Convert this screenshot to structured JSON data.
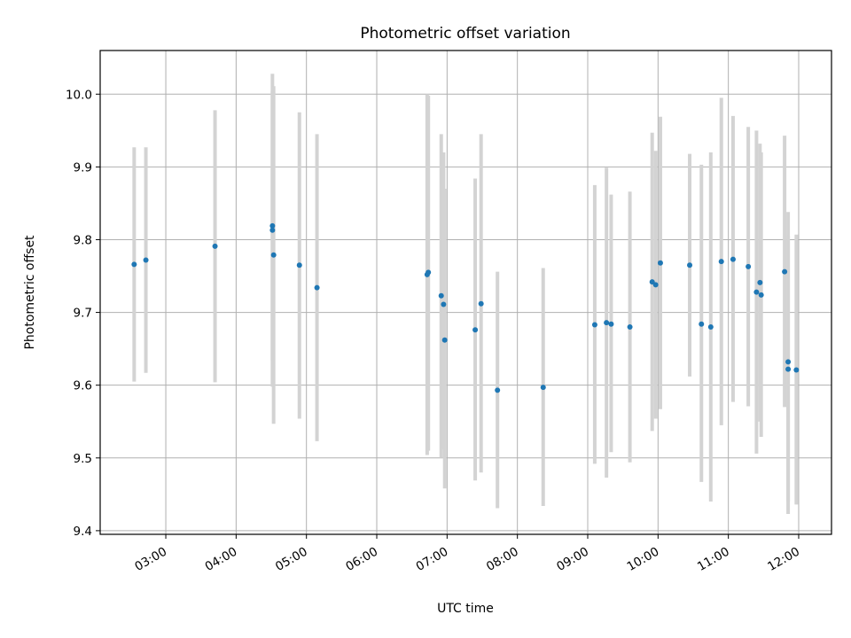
{
  "chart_data": {
    "type": "scatter",
    "title": "Photometric offset variation",
    "xlabel": "UTC time",
    "ylabel": "Photometric offset",
    "x_unit": "hours UTC",
    "xlim": [
      "02:04",
      "12:28"
    ],
    "ylim": [
      9.395,
      10.06
    ],
    "grid": true,
    "x_ticks": [
      "03:00",
      "04:00",
      "05:00",
      "06:00",
      "07:00",
      "08:00",
      "09:00",
      "10:00",
      "11:00",
      "12:00"
    ],
    "y_ticks": [
      "9.4",
      "9.5",
      "9.6",
      "9.7",
      "9.8",
      "9.9",
      "10.0"
    ],
    "error_color": "#d3d3d3",
    "point_color": "#1f77b4",
    "points": [
      {
        "x": "02:33",
        "y": 9.766,
        "ymin": 9.605,
        "ymax": 9.927
      },
      {
        "x": "02:43",
        "y": 9.772,
        "ymin": 9.617,
        "ymax": 9.927
      },
      {
        "x": "03:42",
        "y": 9.791,
        "ymin": 9.604,
        "ymax": 9.978
      },
      {
        "x": "04:31",
        "y": 9.813,
        "ymin": 9.598,
        "ymax": 10.028
      },
      {
        "x": "04:31",
        "y": 9.819,
        "ymin": 9.634,
        "ymax": 10.004
      },
      {
        "x": "04:32",
        "y": 9.779,
        "ymin": 9.547,
        "ymax": 10.011
      },
      {
        "x": "04:54",
        "y": 9.765,
        "ymin": 9.554,
        "ymax": 9.975
      },
      {
        "x": "05:09",
        "y": 9.734,
        "ymin": 9.523,
        "ymax": 9.945
      },
      {
        "x": "06:43",
        "y": 9.752,
        "ymin": 9.504,
        "ymax": 10.0
      },
      {
        "x": "06:44",
        "y": 9.755,
        "ymin": 9.51,
        "ymax": 9.998
      },
      {
        "x": "06:55",
        "y": 9.723,
        "ymin": 9.5,
        "ymax": 9.945
      },
      {
        "x": "06:57",
        "y": 9.711,
        "ymin": 9.512,
        "ymax": 9.92
      },
      {
        "x": "06:58",
        "y": 9.662,
        "ymin": 9.458,
        "ymax": 9.87
      },
      {
        "x": "07:24",
        "y": 9.676,
        "ymin": 9.469,
        "ymax": 9.884
      },
      {
        "x": "07:29",
        "y": 9.712,
        "ymin": 9.48,
        "ymax": 9.945
      },
      {
        "x": "07:43",
        "y": 9.593,
        "ymin": 9.431,
        "ymax": 9.756
      },
      {
        "x": "08:22",
        "y": 9.597,
        "ymin": 9.434,
        "ymax": 9.761
      },
      {
        "x": "09:06",
        "y": 9.683,
        "ymin": 9.492,
        "ymax": 9.875
      },
      {
        "x": "09:16",
        "y": 9.686,
        "ymin": 9.473,
        "ymax": 9.899
      },
      {
        "x": "09:20",
        "y": 9.684,
        "ymin": 9.508,
        "ymax": 9.862
      },
      {
        "x": "09:36",
        "y": 9.68,
        "ymin": 9.494,
        "ymax": 9.866
      },
      {
        "x": "09:55",
        "y": 9.742,
        "ymin": 9.537,
        "ymax": 9.947
      },
      {
        "x": "09:58",
        "y": 9.738,
        "ymin": 9.554,
        "ymax": 9.922
      },
      {
        "x": "10:02",
        "y": 9.768,
        "ymin": 9.567,
        "ymax": 9.969
      },
      {
        "x": "10:27",
        "y": 9.765,
        "ymin": 9.612,
        "ymax": 9.918
      },
      {
        "x": "10:37",
        "y": 9.684,
        "ymin": 9.467,
        "ymax": 9.903
      },
      {
        "x": "10:45",
        "y": 9.68,
        "ymin": 9.44,
        "ymax": 9.92
      },
      {
        "x": "10:54",
        "y": 9.77,
        "ymin": 9.545,
        "ymax": 9.995
      },
      {
        "x": "11:04",
        "y": 9.773,
        "ymin": 9.577,
        "ymax": 9.97
      },
      {
        "x": "11:17",
        "y": 9.763,
        "ymin": 9.571,
        "ymax": 9.955
      },
      {
        "x": "11:24",
        "y": 9.728,
        "ymin": 9.506,
        "ymax": 9.95
      },
      {
        "x": "11:27",
        "y": 9.741,
        "ymin": 9.55,
        "ymax": 9.932
      },
      {
        "x": "11:28",
        "y": 9.724,
        "ymin": 9.529,
        "ymax": 9.92
      },
      {
        "x": "11:48",
        "y": 9.756,
        "ymin": 9.57,
        "ymax": 9.943
      },
      {
        "x": "11:51",
        "y": 9.632,
        "ymin": 9.423,
        "ymax": 9.838
      },
      {
        "x": "11:51",
        "y": 9.622,
        "ymin": 9.44,
        "ymax": 9.805
      },
      {
        "x": "11:58",
        "y": 9.621,
        "ymin": 9.436,
        "ymax": 9.807
      }
    ]
  }
}
